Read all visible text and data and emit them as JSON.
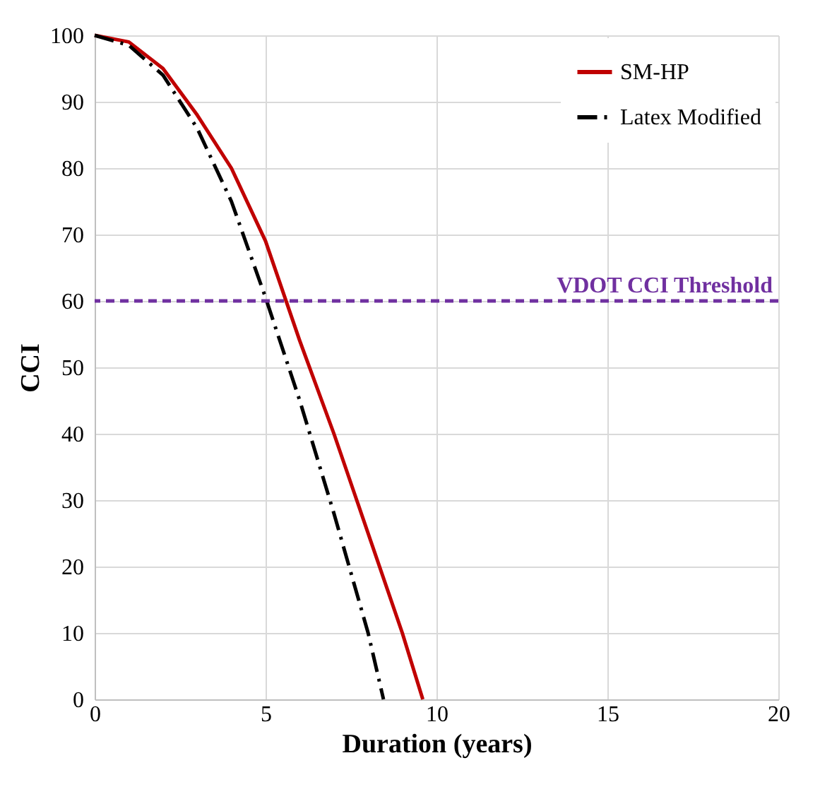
{
  "chart_data": {
    "type": "line",
    "xlabel": "Duration (years)",
    "ylabel": "CCI",
    "xlim": [
      0,
      20
    ],
    "xticks": [
      0,
      5,
      10,
      15,
      20
    ],
    "ylim": [
      0,
      100
    ],
    "yticks": [
      0,
      10,
      20,
      30,
      40,
      50,
      60,
      70,
      80,
      90,
      100
    ],
    "grid": true,
    "legend": "top right",
    "series": [
      {
        "name": "SM-HP",
        "color": "#c00000",
        "line_style": "solid",
        "x": [
          0,
          1,
          2,
          3,
          4,
          5,
          6,
          7,
          8,
          9,
          9.6
        ],
        "values": [
          100,
          99,
          95,
          88,
          80,
          69,
          54,
          40,
          25,
          10,
          0
        ]
      },
      {
        "name": "Latex Modified",
        "color": "#000000",
        "line_style": "dashdot",
        "x": [
          0,
          1,
          2,
          3,
          4,
          5,
          6,
          7,
          8,
          8.45
        ],
        "values": [
          100,
          98.5,
          94,
          86,
          75,
          60.5,
          45,
          28,
          10,
          0
        ]
      }
    ],
    "ref_lines": [
      {
        "axis": "y",
        "value": 60,
        "label": "VDOT CCI Threshold",
        "color": "#7030a0",
        "line_style": "dashed"
      }
    ]
  }
}
